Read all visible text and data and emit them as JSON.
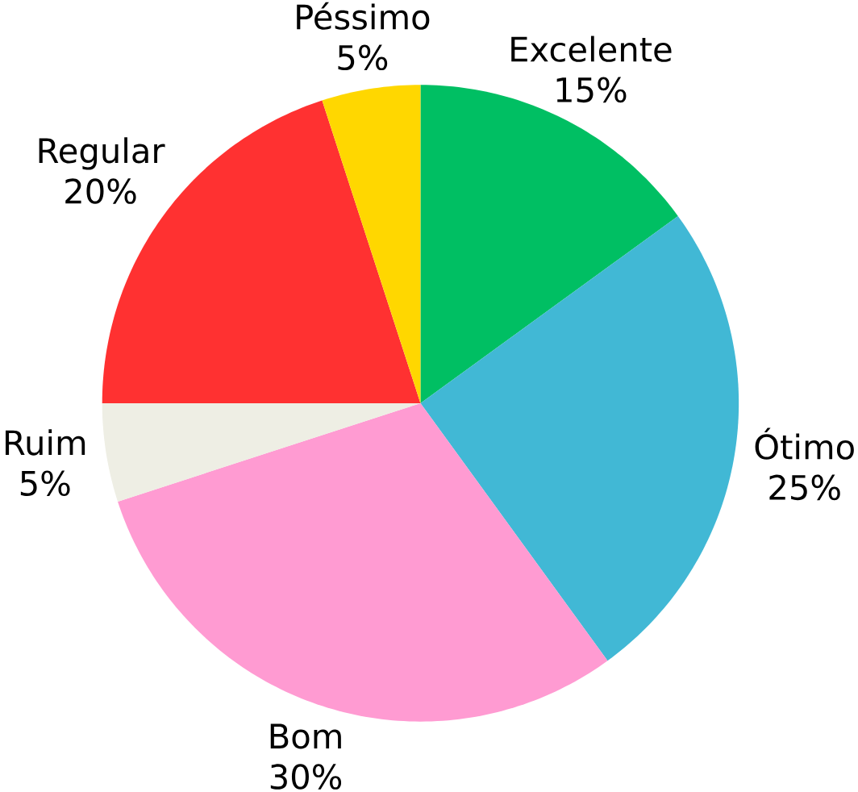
{
  "chart_data": {
    "type": "pie",
    "categories": [
      "Excelente",
      "Ótimo",
      "Bom",
      "Ruim",
      "Regular",
      "Péssimo"
    ],
    "values": [
      15,
      25,
      30,
      5,
      20,
      5
    ],
    "colors": [
      "#00bf63",
      "#41b8d5",
      "#ff9bd2",
      "#eeeee4",
      "#ff3131",
      "#ffd700"
    ],
    "value_labels": [
      "15%",
      "25%",
      "30%",
      "5%",
      "20%",
      "5%"
    ]
  }
}
